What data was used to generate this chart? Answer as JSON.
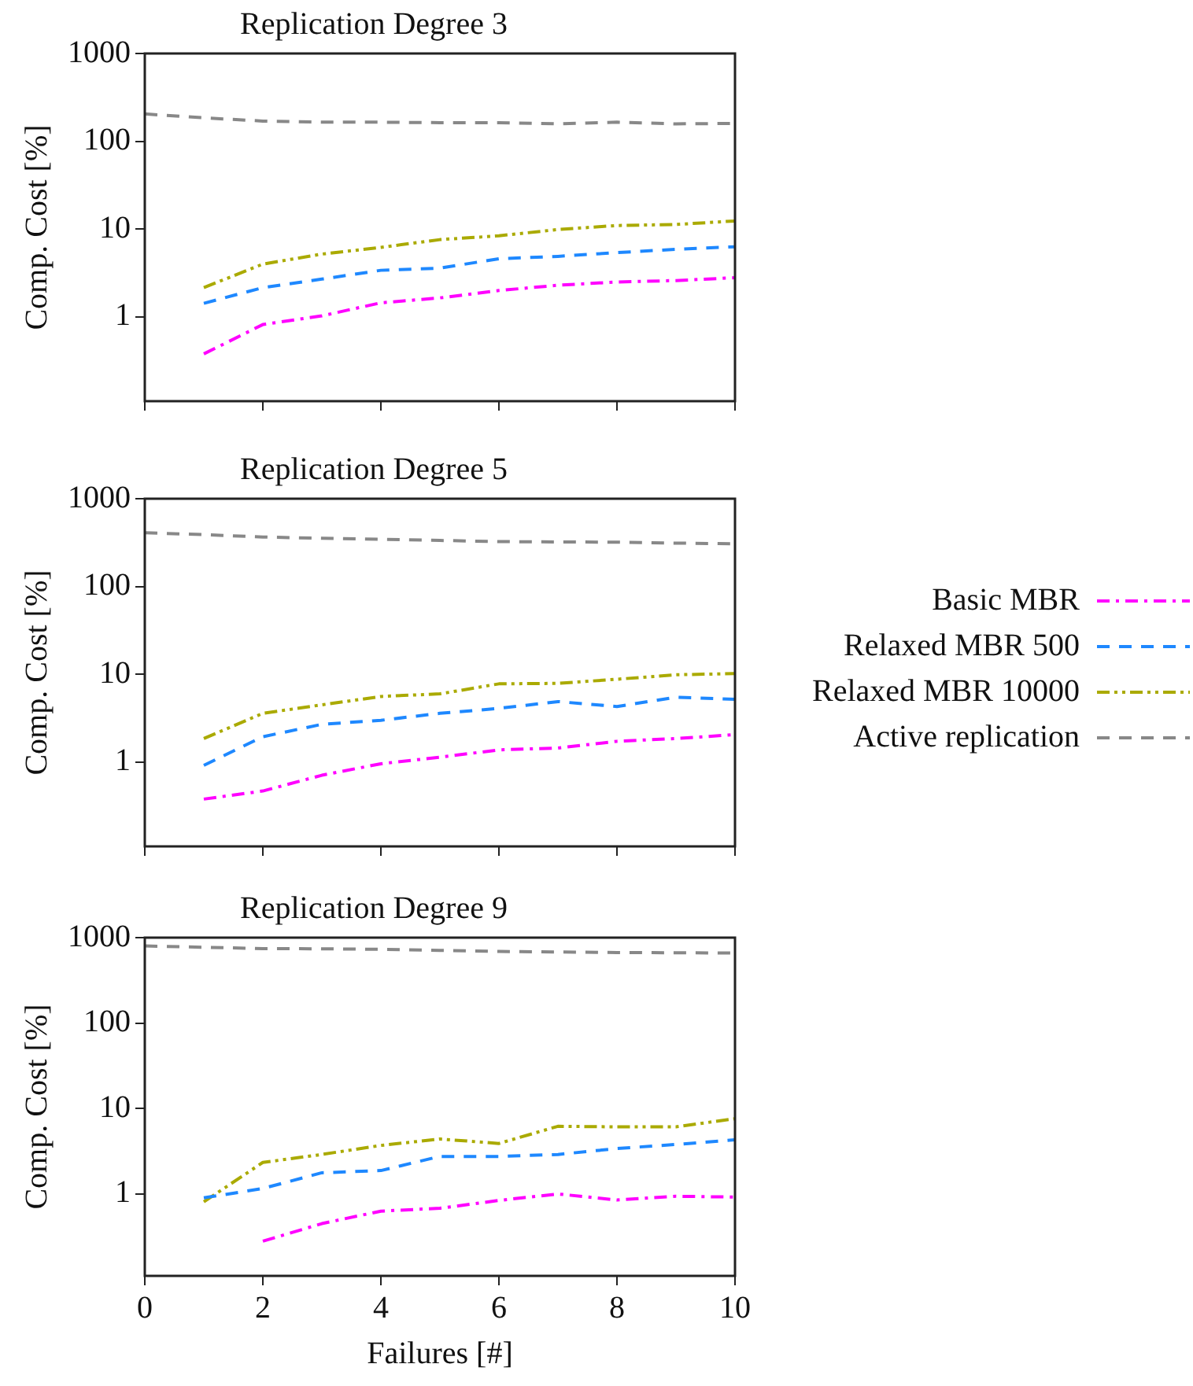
{
  "chart_data": [
    {
      "type": "line",
      "title": "Replication Degree 3",
      "ylabel": "Comp. Cost [%]",
      "x": [
        0,
        1,
        2,
        3,
        4,
        5,
        6,
        7,
        8,
        9,
        10
      ],
      "xlim": [
        0,
        10
      ],
      "xticks": [
        0,
        2,
        4,
        6,
        8,
        10
      ],
      "ylim": [
        0.11,
        1000
      ],
      "yticks": [
        1,
        10,
        100,
        1000
      ],
      "log": true,
      "grid": false,
      "legend": false,
      "marker": "none",
      "tick_labels": "y",
      "series": [
        {
          "color": "#ff00ff",
          "line_style": "dashdot",
          "values": [
            null,
            0.38,
            0.82,
            1.03,
            1.45,
            1.65,
            2.0,
            2.3,
            2.5,
            2.6,
            2.8
          ]
        },
        {
          "color": "#1e88ff",
          "line_style": "dashed",
          "values": [
            null,
            1.43,
            2.16,
            2.7,
            3.4,
            3.6,
            4.6,
            4.9,
            5.4,
            5.9,
            6.3
          ]
        },
        {
          "color": "#aaaa00",
          "line_style": "dashdotdot",
          "values": [
            null,
            2.16,
            4.0,
            5.2,
            6.2,
            7.6,
            8.4,
            9.9,
            11,
            11.3,
            12.4
          ]
        },
        {
          "color": "#888888",
          "line_style": "dashed",
          "values": [
            205,
            185,
            170,
            165,
            165,
            163,
            163,
            158,
            165,
            158,
            160
          ]
        }
      ]
    },
    {
      "type": "line",
      "title": "Replication Degree 5",
      "ylabel": "Comp. Cost [%]",
      "x": [
        0,
        1,
        2,
        3,
        4,
        5,
        6,
        7,
        8,
        9,
        10
      ],
      "xlim": [
        0,
        10
      ],
      "xticks": [
        0,
        2,
        4,
        6,
        8,
        10
      ],
      "ylim": [
        0.11,
        1000
      ],
      "yticks": [
        1,
        10,
        100,
        1000
      ],
      "log": true,
      "grid": false,
      "legend": "right",
      "marker": "none",
      "tick_labels": "y",
      "series": [
        {
          "name": "Basic MBR",
          "color": "#ff00ff",
          "line_style": "dashdot",
          "values": [
            null,
            0.38,
            0.47,
            0.71,
            0.96,
            1.14,
            1.38,
            1.45,
            1.73,
            1.86,
            2.06
          ]
        },
        {
          "name": "Relaxed MBR 500",
          "color": "#1e88ff",
          "line_style": "dashed",
          "values": [
            null,
            0.92,
            1.95,
            2.7,
            3.0,
            3.6,
            4.1,
            4.9,
            4.3,
            5.5,
            5.2
          ]
        },
        {
          "name": "Relaxed MBR 10000",
          "color": "#aaaa00",
          "line_style": "dashdotdot",
          "values": [
            null,
            1.86,
            3.6,
            4.5,
            5.6,
            6.0,
            7.8,
            7.9,
            8.8,
            9.9,
            10.2
          ]
        },
        {
          "name": "Active replication",
          "color": "#888888",
          "line_style": "dashed",
          "values": [
            410,
            390,
            366,
            355,
            345,
            335,
            325,
            322,
            320,
            312,
            307
          ]
        }
      ]
    },
    {
      "type": "line",
      "title": "Replication Degree 9",
      "xlabel": "Failures [#]",
      "ylabel": "Comp. Cost [%]",
      "x": [
        0,
        1,
        2,
        3,
        4,
        5,
        6,
        7,
        8,
        9,
        10
      ],
      "xlim": [
        0,
        10
      ],
      "xticks": [
        0,
        2,
        4,
        6,
        8,
        10
      ],
      "ylim": [
        0.11,
        1000
      ],
      "yticks": [
        1,
        10,
        100,
        1000
      ],
      "log": true,
      "grid": false,
      "legend": false,
      "marker": "none",
      "series": [
        {
          "color": "#ff00ff",
          "line_style": "dashdot",
          "values": [
            null,
            null,
            0.28,
            0.45,
            0.63,
            0.68,
            0.84,
            1.0,
            0.85,
            0.94,
            0.92
          ]
        },
        {
          "color": "#1e88ff",
          "line_style": "dashed",
          "values": [
            null,
            0.9,
            1.16,
            1.77,
            1.88,
            2.75,
            2.75,
            2.9,
            3.4,
            3.8,
            4.3
          ]
        },
        {
          "color": "#aaaa00",
          "line_style": "dashdotdot",
          "values": [
            null,
            0.81,
            2.34,
            2.9,
            3.7,
            4.4,
            3.9,
            6.2,
            6.1,
            6.1,
            7.6
          ]
        },
        {
          "color": "#888888",
          "line_style": "dashed",
          "values": [
            800,
            770,
            745,
            740,
            730,
            710,
            690,
            680,
            670,
            665,
            660
          ]
        }
      ]
    }
  ]
}
